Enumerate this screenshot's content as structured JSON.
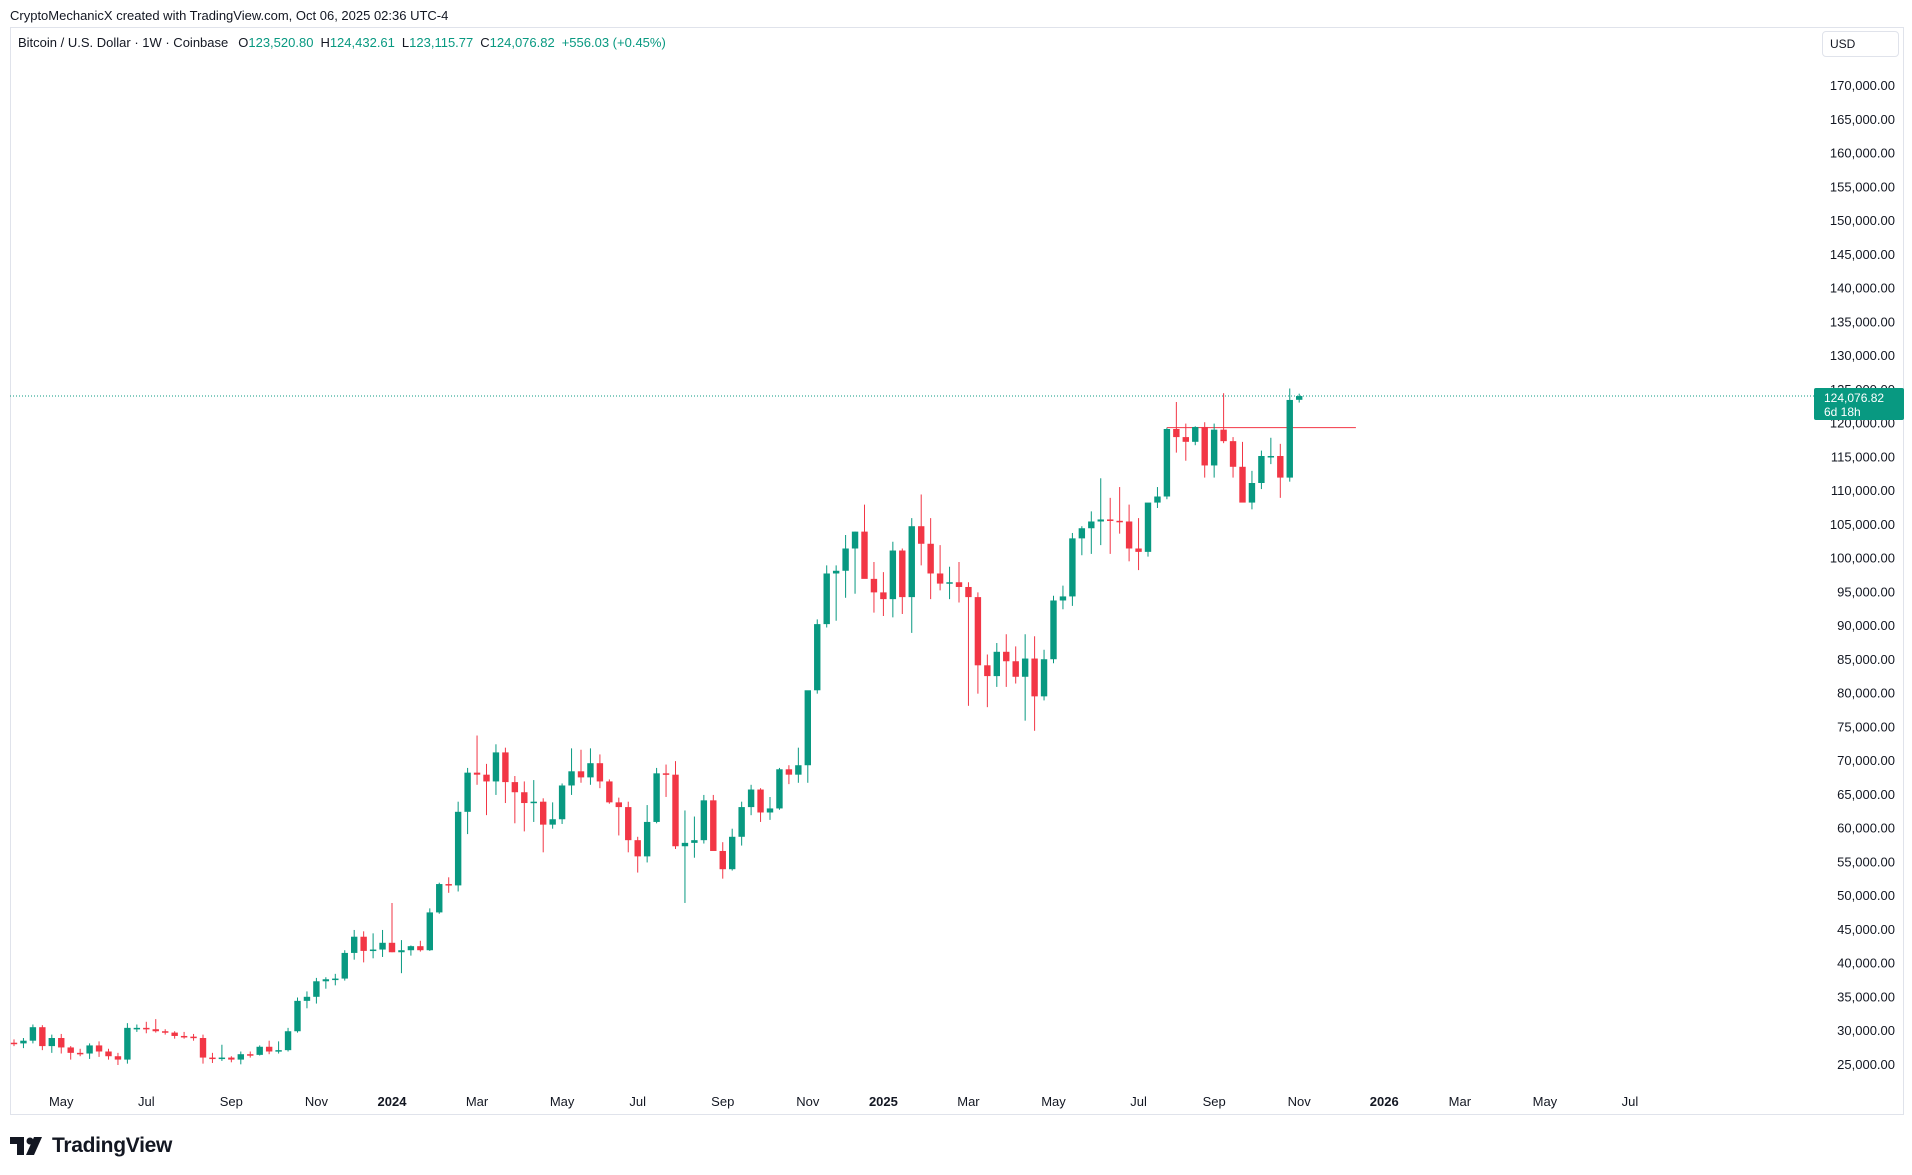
{
  "header": {
    "attribution": "CryptoMechanicX created with TradingView.com, Oct 06, 2025 02:36 UTC-4"
  },
  "legend": {
    "symbol": "Bitcoin / U.S. Dollar · 1W · Coinbase",
    "open_label": "O",
    "open": "123,520.80",
    "high_label": "H",
    "high": "124,432.61",
    "low_label": "L",
    "low": "123,115.77",
    "close_label": "C",
    "close": "124,076.82",
    "change": "+556.03 (+0.45%)"
  },
  "currency_button": "USD",
  "last_price_tag": {
    "price": "124,076.82",
    "countdown": "6d 18h"
  },
  "brand": {
    "name": "TradingView"
  },
  "colors": {
    "up": "#089981",
    "down": "#f23645",
    "grid_text": "#131722",
    "last_price_line": "#089981",
    "marker_line": "#f23645"
  },
  "chart_data": {
    "type": "candlestick",
    "title": "Bitcoin / U.S. Dollar · 1W · Coinbase",
    "ylabel": "USD",
    "ylim": [
      21000,
      176000
    ],
    "y_ticks": [
      25000,
      30000,
      35000,
      40000,
      45000,
      50000,
      55000,
      60000,
      65000,
      70000,
      75000,
      80000,
      85000,
      90000,
      95000,
      100000,
      105000,
      110000,
      115000,
      120000,
      125000,
      130000,
      135000,
      140000,
      145000,
      150000,
      155000,
      160000,
      165000,
      170000
    ],
    "y_tick_labels": [
      "25,000.00",
      "30,000.00",
      "35,000.00",
      "40,000.00",
      "45,000.00",
      "50,000.00",
      "55,000.00",
      "60,000.00",
      "65,000.00",
      "70,000.00",
      "75,000.00",
      "80,000.00",
      "85,000.00",
      "90,000.00",
      "95,000.00",
      "100,000.00",
      "105,000.00",
      "110,000.00",
      "115,000.00",
      "120,000.00",
      "125,000.00",
      "130,000.00",
      "135,000.00",
      "140,000.00",
      "145,000.00",
      "150,000.00",
      "155,000.00",
      "160,000.00",
      "165,000.00",
      "170,000.00"
    ],
    "x_ticks": [
      {
        "label": "May",
        "week": 5,
        "bold": false
      },
      {
        "label": "Jul",
        "week": 14,
        "bold": false
      },
      {
        "label": "Sep",
        "week": 23,
        "bold": false
      },
      {
        "label": "Nov",
        "week": 32,
        "bold": false
      },
      {
        "label": "2024",
        "week": 40,
        "bold": true
      },
      {
        "label": "Mar",
        "week": 49,
        "bold": false
      },
      {
        "label": "May",
        "week": 58,
        "bold": false
      },
      {
        "label": "Jul",
        "week": 66,
        "bold": false
      },
      {
        "label": "Sep",
        "week": 75,
        "bold": false
      },
      {
        "label": "Nov",
        "week": 84,
        "bold": false
      },
      {
        "label": "2025",
        "week": 92,
        "bold": true
      },
      {
        "label": "Mar",
        "week": 101,
        "bold": false
      },
      {
        "label": "May",
        "week": 110,
        "bold": false
      },
      {
        "label": "Jul",
        "week": 119,
        "bold": false
      },
      {
        "label": "Sep",
        "week": 127,
        "bold": false
      },
      {
        "label": "Nov",
        "week": 136,
        "bold": false
      },
      {
        "label": "2026",
        "week": 145,
        "bold": true
      },
      {
        "label": "Mar",
        "week": 153,
        "bold": false
      },
      {
        "label": "May",
        "week": 162,
        "bold": false
      },
      {
        "label": "Jul",
        "week": 171,
        "bold": false
      }
    ],
    "last_price": 124076.82,
    "marker_line": {
      "price": 119400,
      "from_week": 122,
      "to_week": 142
    },
    "candles": [
      [
        28300,
        28800,
        27800,
        28200
      ],
      [
        28200,
        29000,
        27500,
        28600
      ],
      [
        28600,
        31000,
        28200,
        30600
      ],
      [
        30600,
        30900,
        27200,
        27800
      ],
      [
        27800,
        29500,
        26800,
        29000
      ],
      [
        29000,
        29600,
        26700,
        27600
      ],
      [
        27600,
        27800,
        25800,
        26800
      ],
      [
        26800,
        27400,
        26300,
        26700
      ],
      [
        26700,
        28200,
        25900,
        27900
      ],
      [
        27900,
        28500,
        26200,
        27000
      ],
      [
        27000,
        27400,
        25800,
        26300
      ],
      [
        26300,
        26800,
        25000,
        25800
      ],
      [
        25800,
        31200,
        25200,
        30500
      ],
      [
        30500,
        31000,
        29900,
        30500
      ],
      [
        30500,
        31400,
        29700,
        30300
      ],
      [
        30300,
        31800,
        29800,
        30000
      ],
      [
        30000,
        30300,
        29500,
        29800
      ],
      [
        29800,
        30000,
        28900,
        29300
      ],
      [
        29300,
        29900,
        28900,
        29200
      ],
      [
        29200,
        29600,
        28600,
        29000
      ],
      [
        29000,
        29500,
        25200,
        26100
      ],
      [
        26100,
        26800,
        25300,
        26000
      ],
      [
        26000,
        28000,
        25600,
        26100
      ],
      [
        26100,
        26300,
        25400,
        25800
      ],
      [
        25800,
        27000,
        25100,
        26600
      ],
      [
        26600,
        27000,
        26100,
        26500
      ],
      [
        26500,
        27900,
        26400,
        27700
      ],
      [
        27700,
        28600,
        26600,
        27000
      ],
      [
        27000,
        28500,
        26700,
        27200
      ],
      [
        27200,
        30500,
        27000,
        30000
      ],
      [
        30000,
        35000,
        29800,
        34500
      ],
      [
        34500,
        35900,
        33400,
        35100
      ],
      [
        35100,
        37900,
        34100,
        37400
      ],
      [
        37400,
        38000,
        36300,
        37700
      ],
      [
        37700,
        38500,
        36800,
        37800
      ],
      [
        37800,
        42000,
        37500,
        41600
      ],
      [
        41600,
        45000,
        40600,
        44000
      ],
      [
        44000,
        44800,
        40200,
        41900
      ],
      [
        41900,
        44500,
        40800,
        42100
      ],
      [
        42100,
        45000,
        41000,
        43100
      ],
      [
        43100,
        49000,
        41700,
        41700
      ],
      [
        41700,
        43500,
        38600,
        42000
      ],
      [
        42000,
        42700,
        41200,
        42600
      ],
      [
        42600,
        43400,
        41800,
        42000
      ],
      [
        42000,
        48200,
        41900,
        47600
      ],
      [
        47600,
        52000,
        47400,
        51800
      ],
      [
        51800,
        52800,
        50500,
        51600
      ],
      [
        51600,
        64000,
        50700,
        62500
      ],
      [
        62500,
        69000,
        59200,
        68300
      ],
      [
        68300,
        73800,
        66500,
        68000
      ],
      [
        68000,
        69600,
        62000,
        67000
      ],
      [
        67000,
        72500,
        65000,
        71300
      ],
      [
        71300,
        72000,
        63800,
        66900
      ],
      [
        66900,
        67800,
        60800,
        65400
      ],
      [
        65400,
        67000,
        59600,
        63800
      ],
      [
        63800,
        67200,
        61000,
        64000
      ],
      [
        64000,
        64500,
        56500,
        60600
      ],
      [
        60600,
        63900,
        60000,
        61400
      ],
      [
        61400,
        66700,
        60700,
        66400
      ],
      [
        66400,
        71900,
        65000,
        68500
      ],
      [
        68500,
        71700,
        66800,
        67600
      ],
      [
        67600,
        71900,
        66500,
        69700
      ],
      [
        69700,
        71000,
        66000,
        67000
      ],
      [
        67000,
        67300,
        63700,
        63900
      ],
      [
        63900,
        64600,
        59000,
        63200
      ],
      [
        63200,
        64000,
        56500,
        58300
      ],
      [
        58300,
        58800,
        53500,
        55900
      ],
      [
        55900,
        63500,
        55000,
        61000
      ],
      [
        61000,
        69000,
        60800,
        68200
      ],
      [
        68200,
        69500,
        64700,
        68000
      ],
      [
        68000,
        70000,
        57000,
        57400
      ],
      [
        57400,
        62700,
        49000,
        57900
      ],
      [
        57900,
        61800,
        55700,
        58300
      ],
      [
        58300,
        65000,
        57800,
        64200
      ],
      [
        64200,
        65000,
        57000,
        56700
      ],
      [
        56700,
        58000,
        52600,
        54000
      ],
      [
        54000,
        60000,
        53800,
        58800
      ],
      [
        58800,
        64000,
        57500,
        63200
      ],
      [
        63200,
        66500,
        62000,
        65800
      ],
      [
        65800,
        66000,
        61000,
        62400
      ],
      [
        62400,
        64700,
        61300,
        63000
      ],
      [
        63000,
        69000,
        62800,
        68800
      ],
      [
        68800,
        69400,
        66600,
        68000
      ],
      [
        68000,
        72000,
        66800,
        69400
      ],
      [
        69400,
        80000,
        66800,
        80500
      ],
      [
        80500,
        91000,
        80000,
        90300
      ],
      [
        90300,
        99000,
        89800,
        97800
      ],
      [
        97800,
        99000,
        90800,
        98200
      ],
      [
        98200,
        103500,
        94200,
        101500
      ],
      [
        101500,
        104000,
        94800,
        104000
      ],
      [
        104000,
        108000,
        97800,
        97000
      ],
      [
        97000,
        99500,
        92000,
        95000
      ],
      [
        95000,
        98000,
        91500,
        94000
      ],
      [
        94000,
        102500,
        91300,
        101200
      ],
      [
        101200,
        101500,
        91800,
        94300
      ],
      [
        94300,
        106000,
        89000,
        104800
      ],
      [
        104800,
        109500,
        99000,
        102200
      ],
      [
        102200,
        106000,
        94000,
        97800
      ],
      [
        97800,
        102000,
        95300,
        96300
      ],
      [
        96300,
        98800,
        94000,
        96500
      ],
      [
        96500,
        99500,
        93500,
        95800
      ],
      [
        95800,
        96500,
        78200,
        94300
      ],
      [
        94300,
        95000,
        80000,
        84200
      ],
      [
        84200,
        85800,
        78000,
        82600
      ],
      [
        82600,
        87500,
        81000,
        86200
      ],
      [
        86200,
        88800,
        81000,
        84800
      ],
      [
        84800,
        87000,
        81500,
        82500
      ],
      [
        82500,
        88800,
        76000,
        85200
      ],
      [
        85200,
        88500,
        74500,
        79600
      ],
      [
        79600,
        86500,
        79000,
        85100
      ],
      [
        85100,
        94500,
        84500,
        93800
      ],
      [
        93800,
        96000,
        92500,
        94400
      ],
      [
        94400,
        103800,
        93000,
        103000
      ],
      [
        103000,
        104800,
        100500,
        104500
      ],
      [
        104500,
        107000,
        100700,
        105500
      ],
      [
        105500,
        111900,
        102000,
        105800
      ],
      [
        105800,
        109000,
        100700,
        105600
      ],
      [
        105600,
        110600,
        103700,
        105500
      ],
      [
        105500,
        108000,
        99600,
        101500
      ],
      [
        101500,
        106000,
        98300,
        101000
      ],
      [
        101000,
        108000,
        100300,
        108300
      ],
      [
        108300,
        110600,
        107500,
        109200
      ],
      [
        109200,
        119400,
        108800,
        119200
      ],
      [
        119200,
        123200,
        115700,
        118000
      ],
      [
        118000,
        120000,
        114500,
        117300
      ],
      [
        117300,
        119600,
        116800,
        119500
      ],
      [
        119500,
        120200,
        112000,
        113800
      ],
      [
        113800,
        120000,
        112000,
        119100
      ],
      [
        119100,
        124500,
        117100,
        117400
      ],
      [
        117400,
        118000,
        112000,
        113600
      ],
      [
        113600,
        117300,
        109300,
        108300
      ],
      [
        108300,
        113000,
        107300,
        111200
      ],
      [
        111200,
        116000,
        110300,
        115200
      ],
      [
        115200,
        117900,
        114000,
        115200
      ],
      [
        115200,
        117000,
        109000,
        112000
      ],
      [
        112000,
        125200,
        111400,
        123500
      ],
      [
        123520.8,
        124432.61,
        123115.77,
        124076.82
      ]
    ]
  }
}
